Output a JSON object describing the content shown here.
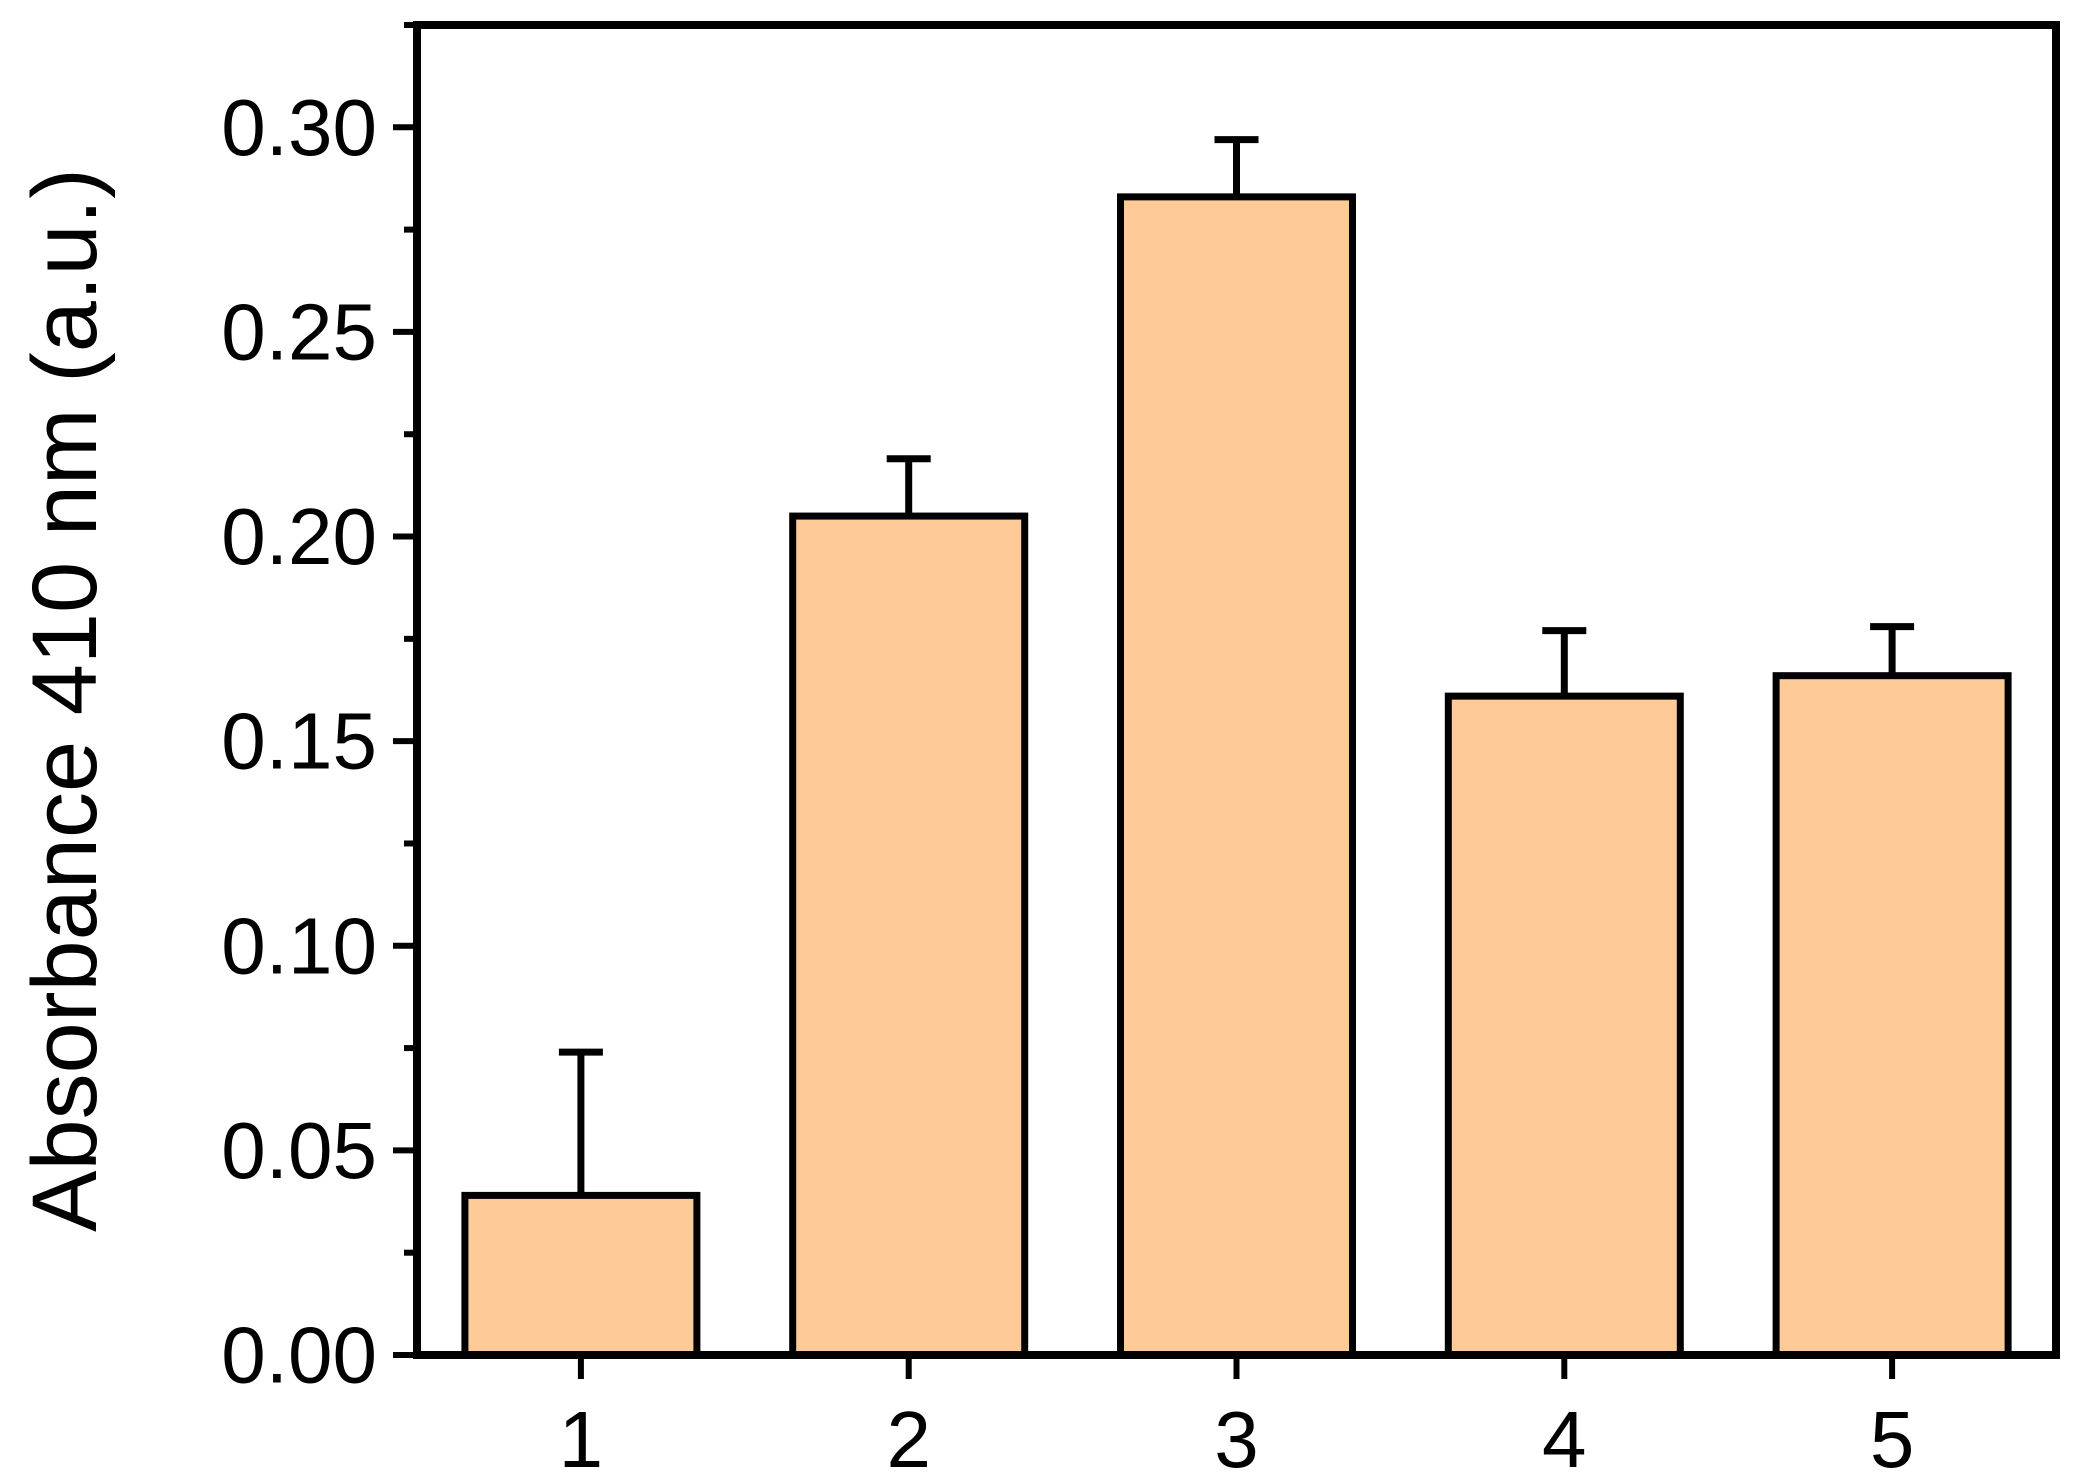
{
  "chart_data": {
    "type": "bar",
    "title": "",
    "xlabel": "",
    "ylabel": "Absorbance 410 nm (a.u.)",
    "categories": [
      "1",
      "2",
      "3",
      "4",
      "5"
    ],
    "values": [
      0.039,
      0.205,
      0.283,
      0.161,
      0.166
    ],
    "error_plus": [
      0.035,
      0.014,
      0.014,
      0.016,
      0.012
    ],
    "ylim": [
      0,
      0.325
    ],
    "yticks": [
      0.0,
      0.05,
      0.1,
      0.15,
      0.2,
      0.25,
      0.3
    ],
    "ytick_labels": [
      "0.00",
      "0.05",
      "0.10",
      "0.15",
      "0.20",
      "0.25",
      "0.30"
    ],
    "grid": false,
    "legend": "none",
    "colors": {
      "bar_fill": "#FECA98",
      "bar_edge": "#000000",
      "axis": "#000000"
    }
  }
}
